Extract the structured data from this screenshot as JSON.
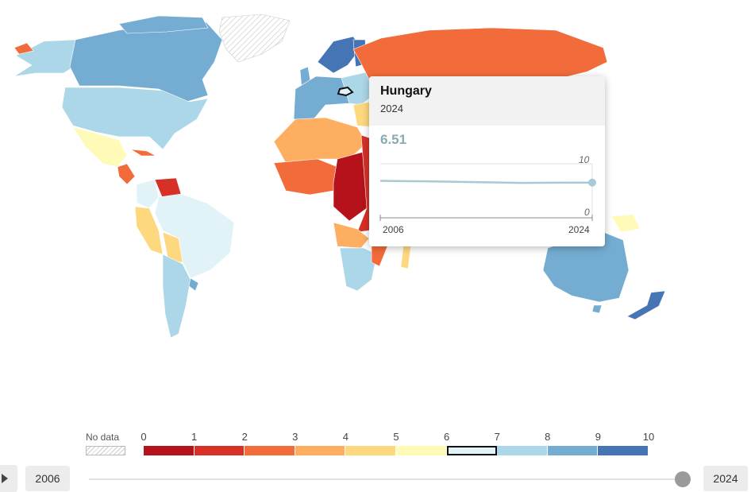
{
  "tooltip": {
    "country": "Hungary",
    "year": "2024",
    "value": "6.51",
    "spark_max_label": "10",
    "spark_min_label": "0",
    "spark_start_label": "2006",
    "spark_end_label": "2024",
    "series": [
      {
        "year": 2006,
        "value": 6.84
      },
      {
        "year": 2010,
        "value": 6.74
      },
      {
        "year": 2014,
        "value": 6.6
      },
      {
        "year": 2018,
        "value": 6.46
      },
      {
        "year": 2022,
        "value": 6.5
      },
      {
        "year": 2024,
        "value": 6.51
      }
    ],
    "line_color": "#a8cad6"
  },
  "legend": {
    "no_data_label": "No data",
    "ticks": [
      "0",
      "1",
      "2",
      "3",
      "4",
      "5",
      "6",
      "7",
      "8",
      "9",
      "10"
    ],
    "bins": [
      {
        "from": 0,
        "to": 1,
        "color": "#b5121b"
      },
      {
        "from": 1,
        "to": 2,
        "color": "#d73027"
      },
      {
        "from": 2,
        "to": 3,
        "color": "#f26b3a"
      },
      {
        "from": 3,
        "to": 4,
        "color": "#fdae61"
      },
      {
        "from": 4,
        "to": 5,
        "color": "#fed87f"
      },
      {
        "from": 5,
        "to": 6,
        "color": "#fffab8"
      },
      {
        "from": 6,
        "to": 7,
        "color": "#e2f3f8"
      },
      {
        "from": 7,
        "to": 8,
        "color": "#acd7e8"
      },
      {
        "from": 8,
        "to": 9,
        "color": "#74add1"
      },
      {
        "from": 9,
        "to": 10,
        "color": "#4575b4"
      }
    ],
    "active_bin": 6
  },
  "timeline": {
    "start_year": "2006",
    "end_year": "2024",
    "current_year": 2024,
    "play_icon": "play-icon"
  },
  "map": {
    "no_data_color": "#dddddd",
    "selected_country": "Hungary"
  }
}
